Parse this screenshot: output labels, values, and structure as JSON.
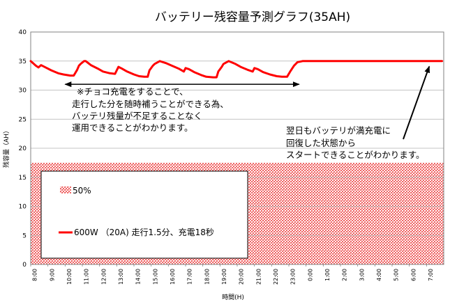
{
  "chart_data": {
    "type": "line",
    "title": "バッテリー残容量予測グラフ(35AH)",
    "xlabel": "時間(H)",
    "ylabel": "残容量（AH）",
    "ylim": [
      0,
      40
    ],
    "yticks": [
      0,
      5,
      10,
      15,
      20,
      25,
      30,
      35,
      40
    ],
    "xlim": [
      8.0,
      32.0
    ],
    "xtick_labels": [
      "8:00",
      "9:00",
      "10:00",
      "11:00",
      "12:00",
      "13:00",
      "14:00",
      "15:00",
      "16:00",
      "17:00",
      "18:00",
      "19:00",
      "20:00",
      "21:00",
      "22:00",
      "23:00",
      "0:00",
      "1:00",
      "2:00",
      "3:00",
      "4:00",
      "5:00",
      "6:00",
      "7:00"
    ],
    "xtick_positions": [
      8,
      9,
      10,
      11,
      12,
      13,
      14,
      15,
      16,
      17,
      18,
      19,
      20,
      21,
      22,
      23,
      24,
      25,
      26,
      27,
      28,
      29,
      30,
      31
    ],
    "legend_position": "bottom-left",
    "band": {
      "name": "50%",
      "value": 17.5,
      "color": "#f08080"
    },
    "series": [
      {
        "name": "600W （20A) 走行1.5分、充電18秒",
        "color": "#ff0000",
        "x": [
          8.0,
          8.3,
          8.45,
          8.6,
          8.8,
          9.2,
          9.6,
          9.9,
          10.3,
          10.5,
          10.7,
          10.8,
          10.9,
          11.1,
          11.2,
          11.5,
          11.9,
          12.2,
          12.6,
          12.9,
          13.0,
          13.1,
          13.3,
          13.6,
          14.0,
          14.3,
          14.6,
          14.8,
          14.9,
          15.1,
          15.2,
          15.5,
          15.9,
          16.2,
          16.6,
          16.9,
          17.0,
          17.2,
          17.5,
          17.9,
          18.2,
          18.6,
          18.8,
          18.9,
          19.1,
          19.2,
          19.5,
          19.9,
          20.2,
          20.6,
          20.9,
          21.0,
          21.2,
          21.5,
          21.9,
          22.3,
          22.6,
          22.9,
          23.1,
          23.3,
          23.5,
          23.8,
          24.2,
          24.7,
          24.9,
          25.1,
          25.4,
          25.7,
          26.0,
          27.0,
          28.0,
          29.0,
          30.0,
          31.0,
          31.9
        ],
        "y": [
          35.0,
          34.2,
          33.9,
          34.3,
          34.0,
          33.4,
          32.9,
          32.7,
          32.5,
          32.5,
          33.5,
          34.2,
          34.5,
          35.0,
          35.0,
          34.3,
          33.7,
          33.2,
          32.9,
          32.8,
          33.4,
          34.0,
          33.7,
          33.2,
          32.7,
          32.4,
          32.3,
          32.3,
          33.4,
          34.2,
          34.5,
          35.0,
          34.6,
          34.2,
          33.7,
          33.2,
          33.8,
          33.6,
          33.1,
          32.6,
          32.3,
          32.2,
          32.2,
          33.2,
          34.0,
          34.5,
          35.0,
          34.5,
          34.0,
          33.5,
          33.2,
          33.8,
          33.6,
          33.1,
          32.7,
          32.4,
          32.3,
          32.3,
          33.3,
          34.2,
          34.8,
          35.0,
          35.0,
          35.0,
          35.0,
          35.0,
          35.0,
          35.0,
          35.0,
          35.0,
          35.0,
          35.0,
          35.0,
          35.0,
          35.0
        ]
      }
    ],
    "annotations": [
      {
        "lines": [
          "※チョコ充電をすることで、",
          "走行した分を随時補うことができる為、",
          "バッテリ残量が不足することなく",
          "運用できることがわかります。"
        ],
        "arrow": "double-horizontal",
        "from_x": 10.0,
        "to_x": 23.6,
        "at_y": 31.0
      },
      {
        "lines": [
          "翌日もバッテリが満充電に",
          "回復した状態から",
          "スタートできることがわかります。"
        ],
        "arrow": "pointing",
        "tip_x": 31.2,
        "tip_y": 34.8
      }
    ]
  }
}
